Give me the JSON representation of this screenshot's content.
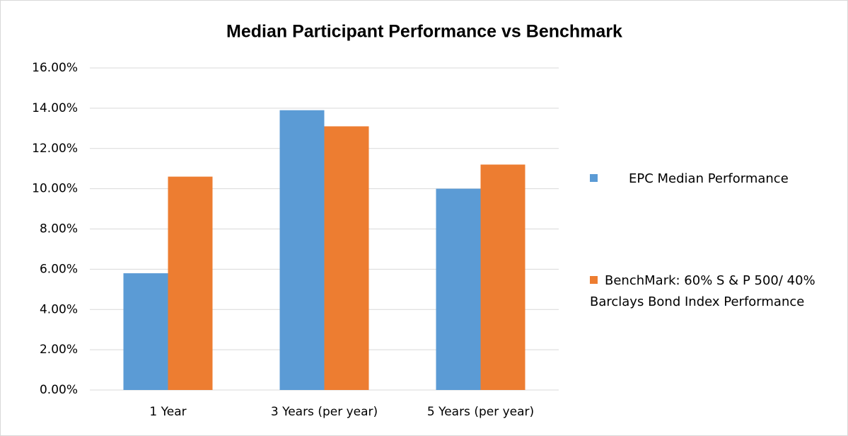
{
  "chart_data": {
    "type": "bar",
    "title": "Median Participant Performance vs Benchmark",
    "categories": [
      "1 Year",
      "3 Years (per year)",
      "5 Years (per year)"
    ],
    "series": [
      {
        "name": "EPC Median Performance",
        "color": "#5b9bd5",
        "values": [
          5.8,
          13.9,
          10.0
        ]
      },
      {
        "name": "BenchMark: 60% S & P 500/ 40% Barclays Bond Index Performance",
        "color": "#ed7d31",
        "values": [
          10.6,
          13.1,
          11.2
        ]
      }
    ],
    "ylim": [
      0,
      16
    ],
    "yticks": [
      {
        "value": 0,
        "label": "0.00%"
      },
      {
        "value": 2,
        "label": "2.00%"
      },
      {
        "value": 4,
        "label": "4.00%"
      },
      {
        "value": 6,
        "label": "6.00%"
      },
      {
        "value": 8,
        "label": "8.00%"
      },
      {
        "value": 10,
        "label": "10.00%"
      },
      {
        "value": 12,
        "label": "12.00%"
      },
      {
        "value": 14,
        "label": "14.00%"
      },
      {
        "value": 16,
        "label": "16.00%"
      }
    ],
    "grid": true,
    "legend": "right"
  }
}
